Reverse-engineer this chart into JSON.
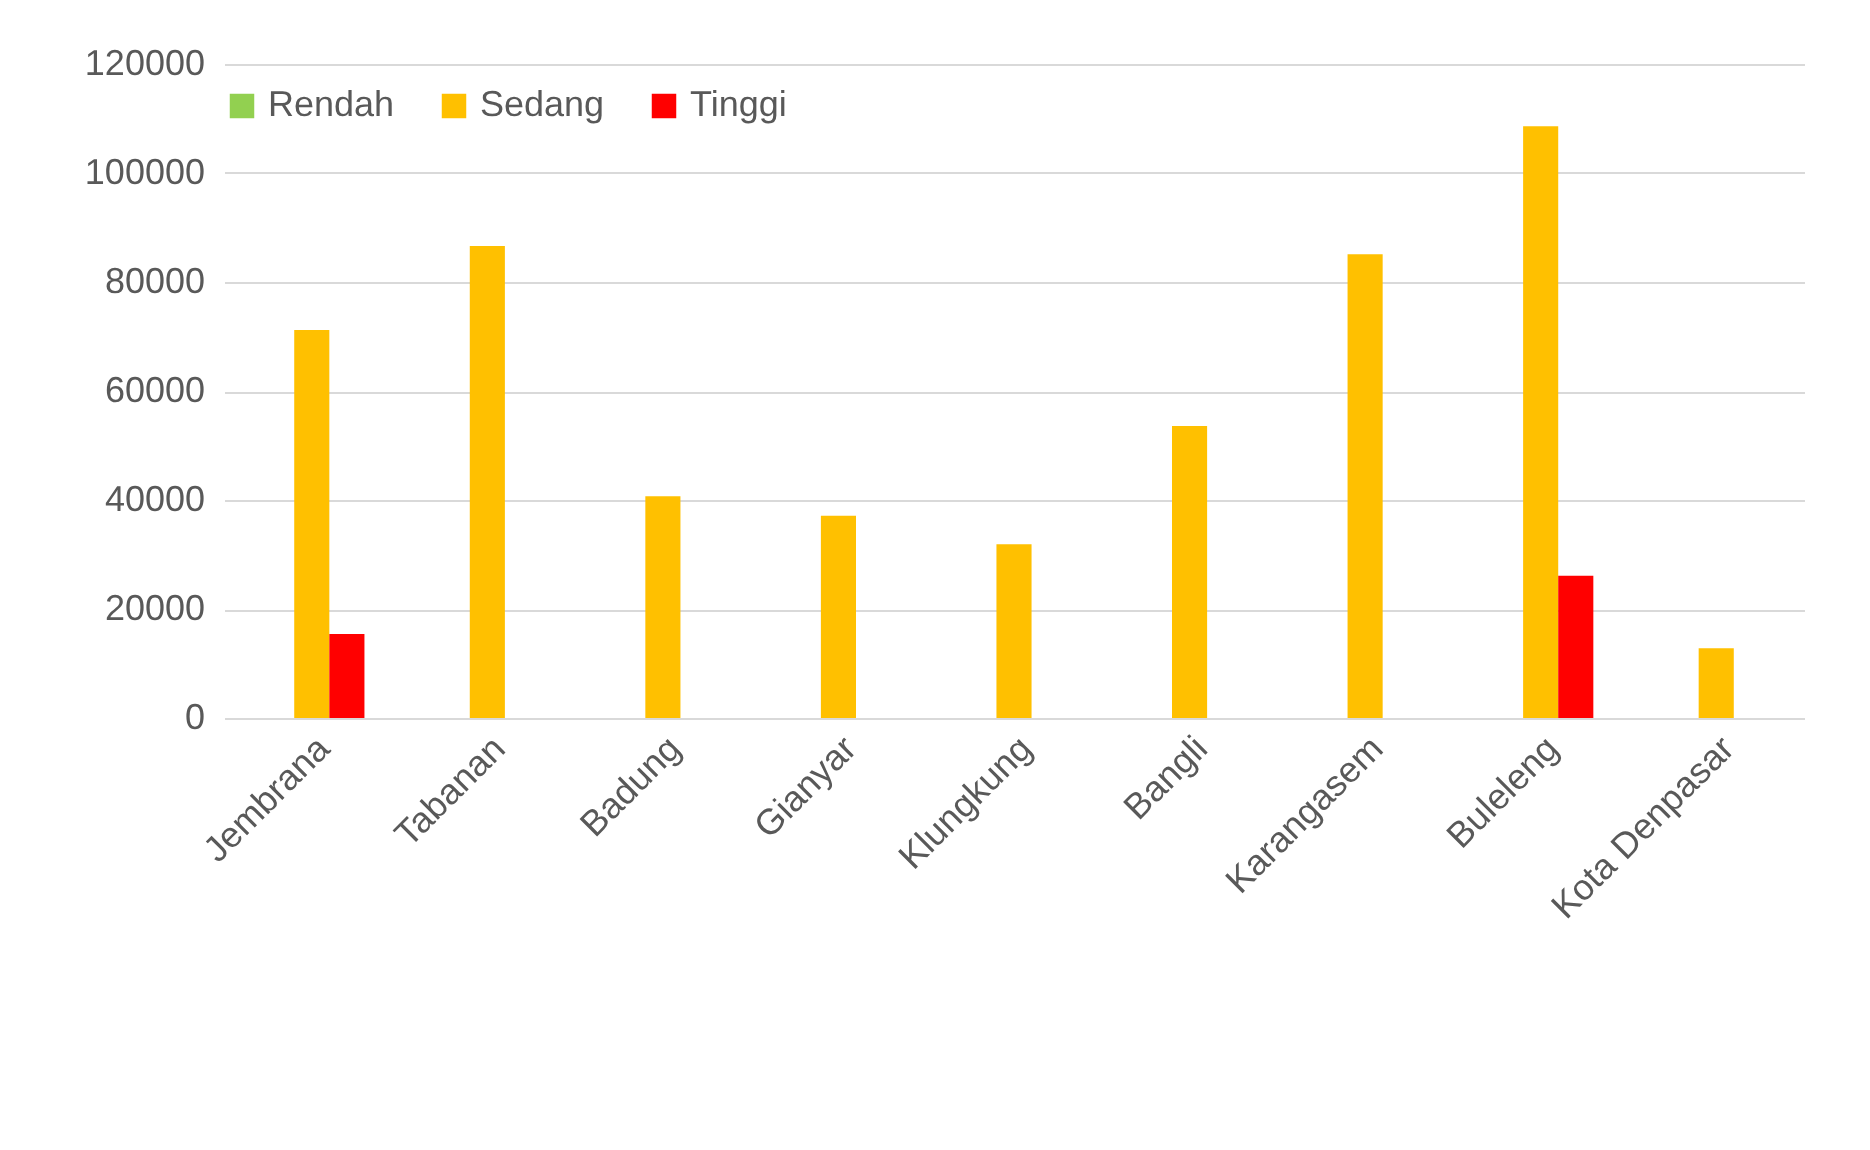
{
  "chart_data": {
    "type": "bar",
    "categories": [
      "Jembrana",
      "Tabanan",
      "Badung",
      "Gianyar",
      "Klungkung",
      "Bangli",
      "Karangasem",
      "Buleleng",
      "Kota Denpasar"
    ],
    "series": [
      {
        "name": "Rendah",
        "color": "#92d050",
        "values": [
          0,
          0,
          0,
          0,
          0,
          0,
          0,
          0,
          0
        ]
      },
      {
        "name": "Sedang",
        "color": "#ffc000",
        "values": [
          71200,
          86600,
          40700,
          37100,
          31900,
          53600,
          85100,
          108600,
          12800
        ]
      },
      {
        "name": "Tinggi",
        "color": "#ff0000",
        "values": [
          15400,
          0,
          0,
          0,
          0,
          0,
          0,
          26100,
          0
        ]
      }
    ],
    "ylim": [
      0,
      120000
    ],
    "yticks": [
      0,
      20000,
      40000,
      60000,
      80000,
      100000,
      120000
    ],
    "grid": "y",
    "legend": "top"
  }
}
